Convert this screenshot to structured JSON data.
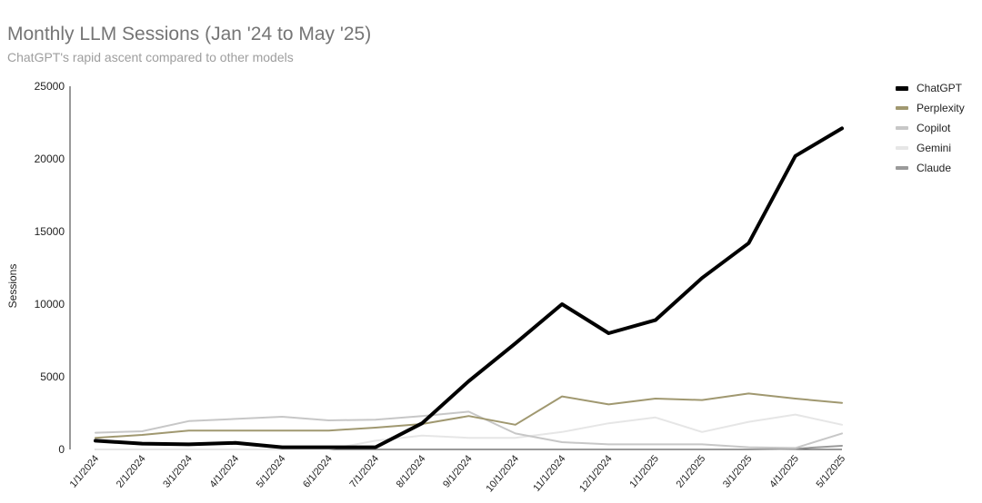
{
  "chart_data": {
    "type": "line",
    "title": "Monthly LLM Sessions (Jan '24 to May '25)",
    "subtitle": "ChatGPT's rapid ascent compared to other models",
    "xlabel": "",
    "ylabel": "Sessions",
    "ylim": [
      0,
      25000
    ],
    "yticks": [
      "0",
      "5000",
      "10000",
      "15000",
      "20000",
      "25000"
    ],
    "grid": false,
    "legend_position": "right",
    "categories": [
      "1/1/2024",
      "2/1/2024",
      "3/1/2024",
      "4/1/2024",
      "5/1/2024",
      "6/1/2024",
      "7/1/2024",
      "8/1/2024",
      "9/1/2024",
      "10/1/2024",
      "11/1/2024",
      "12/1/2024",
      "1/1/2025",
      "2/1/2025",
      "3/1/2025",
      "4/1/2025",
      "5/1/2025"
    ],
    "series": [
      {
        "name": "ChatGPT",
        "color": "#000000",
        "values": [
          600,
          400,
          350,
          450,
          150,
          150,
          150,
          1800,
          4700,
          7300,
          10000,
          8000,
          8900,
          11800,
          14200,
          20200,
          22100
        ]
      },
      {
        "name": "Perplexity",
        "color": "#a09870",
        "values": [
          800,
          1000,
          1300,
          1300,
          1300,
          1300,
          1500,
          1750,
          2300,
          1700,
          3650,
          3100,
          3500,
          3400,
          3850,
          3500,
          3200
        ]
      },
      {
        "name": "Copilot",
        "color": "#c7c7c7",
        "values": [
          1150,
          1250,
          1950,
          2100,
          2250,
          2000,
          2050,
          2300,
          2600,
          1100,
          500,
          350,
          350,
          350,
          150,
          100,
          1100
        ]
      },
      {
        "name": "Gemini",
        "color": "#e6e6e6",
        "values": [
          0,
          0,
          0,
          0,
          0,
          0,
          600,
          950,
          800,
          800,
          1200,
          1800,
          2200,
          1200,
          1900,
          2400,
          1700
        ]
      },
      {
        "name": "Claude",
        "color": "#9a9a9a",
        "values": [
          0,
          0,
          0,
          0,
          0,
          0,
          0,
          0,
          0,
          0,
          0,
          0,
          0,
          0,
          0,
          50,
          250
        ]
      }
    ]
  }
}
